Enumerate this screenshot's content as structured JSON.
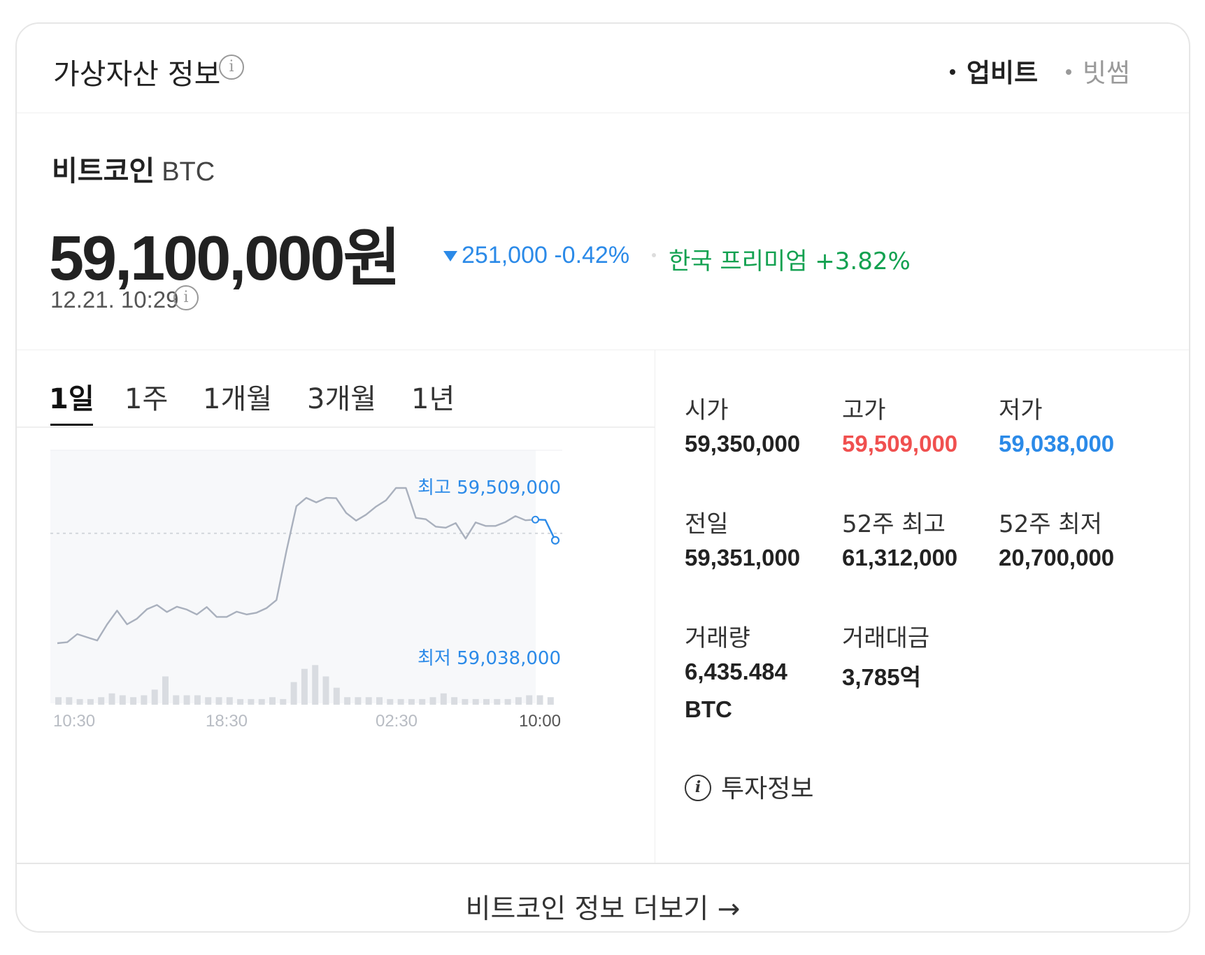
{
  "header": {
    "title": "가상자산 정보",
    "info_icon": "ⓘ",
    "exchanges": [
      {
        "label": "업비트",
        "selected": true
      },
      {
        "label": "빗썸",
        "selected": false
      }
    ]
  },
  "coin": {
    "name": "비트코인",
    "symbol": "BTC",
    "price": "59,100,000",
    "price_unit": "원",
    "change": "251,000 -0.42%",
    "change_direction": "down",
    "premium": "한국 프리미엄 +3.82%",
    "timestamp": "12.21. 10:29"
  },
  "tabs": [
    {
      "label": "1일",
      "active": true
    },
    {
      "label": "1주",
      "active": false
    },
    {
      "label": "1개월",
      "active": false
    },
    {
      "label": "3개월",
      "active": false
    },
    {
      "label": "1년",
      "active": false
    }
  ],
  "chart_data": {
    "type": "line",
    "x_ticks": [
      "10:30",
      "18:30",
      "02:30",
      "10:00"
    ],
    "high_label": "최고 59,509,000",
    "low_label": "최저 59,038,000",
    "series": [
      {
        "values": [
          59038200,
          59041000,
          59064000,
          59055000,
          59046000,
          59092000,
          59131000,
          59092000,
          59108000,
          59135000,
          59147000,
          59127000,
          59142000,
          59134000,
          59120000,
          59141000,
          59113000,
          59113000,
          59128000,
          59120000,
          59125000,
          59138000,
          59161000,
          59300000,
          59428000,
          59452000,
          59439000,
          59452000,
          59451000,
          59409000,
          59387000,
          59404000,
          59427000,
          59445000,
          59480000,
          59480000,
          59395000,
          59391000,
          59370000,
          59367000,
          59380000,
          59336000,
          59382000,
          59372000,
          59372000,
          59383000,
          59400000,
          59388000,
          59390000,
          59389000,
          59331000
        ]
      }
    ],
    "previous_close": 59351000,
    "volume_relative": [
      2,
      2,
      1.5,
      1.5,
      2,
      3,
      2.5,
      2,
      2.5,
      4,
      7.5,
      2.5,
      2.5,
      2.5,
      2,
      2,
      2,
      1.5,
      1.5,
      1.5,
      2,
      1.5,
      6,
      9.5,
      10.5,
      7.5,
      4.5,
      2,
      2,
      2,
      2,
      1.5,
      1.5,
      1.5,
      1.5,
      2,
      3,
      2,
      1.5,
      1.5,
      1.5,
      1.5,
      1.5,
      2,
      2.5,
      2.5,
      2
    ]
  },
  "stats": [
    {
      "label": "시가",
      "value": "59,350,000",
      "color": "#222222"
    },
    {
      "label": "고가",
      "value": "59,509,000",
      "color": "#f0504f"
    },
    {
      "label": "저가",
      "value": "59,038,000",
      "color": "#2b8ae8"
    },
    {
      "label": "전일",
      "value": "59,351,000",
      "color": "#222222"
    },
    {
      "label": "52주 최고",
      "value": "61,312,000",
      "color": "#222222"
    },
    {
      "label": "52주 최저",
      "value": "20,700,000",
      "color": "#222222"
    },
    {
      "label": "거래량",
      "value": "6,435.484",
      "value2": "BTC",
      "color": "#222222"
    },
    {
      "label": "거래대금",
      "value": "3,785억",
      "color": "#222222"
    }
  ],
  "invest_info": {
    "icon": "info-icon",
    "label": "투자정보"
  },
  "footer": {
    "more_label": "비트코인 정보 더보기",
    "arrow": "→"
  },
  "colors": {
    "up": "#f0504f",
    "down": "#2b8ae8",
    "premium": "#12a150",
    "line": "#a9b0bd"
  }
}
